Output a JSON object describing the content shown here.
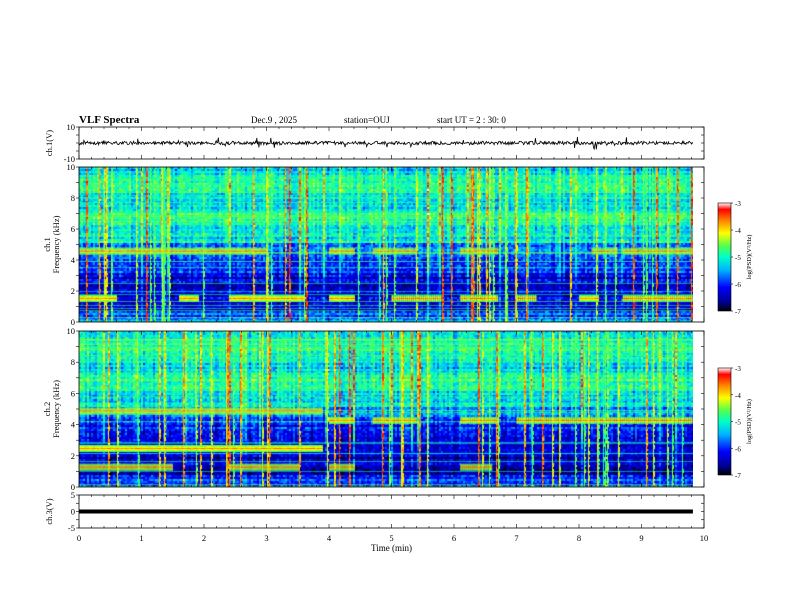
{
  "header": {
    "title": "VLF Spectra",
    "date": "Dec.9 , 2025",
    "station": "station=OUJ",
    "start_ut": "start UT = 2 : 30: 0"
  },
  "chart_data": [
    {
      "type": "line",
      "name": "ch.1 waveform",
      "ylabel": "ch.1(V)",
      "ylim": [
        -10,
        10
      ],
      "yticks": [
        "10",
        "-10"
      ],
      "x_range_min": [
        0,
        9.83
      ],
      "approx_value": 0
    },
    {
      "type": "heatmap",
      "name": "ch.1 spectrogram",
      "ylabel": "ch.1 Frequency (kHz)",
      "ylim": [
        0,
        10
      ],
      "yticks": [
        "0",
        "2",
        "4",
        "6",
        "8",
        "10"
      ],
      "colorbar": {
        "label": "log(PSD)(V²/Hz)",
        "range": [
          -7,
          -3
        ],
        "ticks": [
          "-3",
          "-4",
          "-5",
          "-6",
          "-7"
        ]
      },
      "tone_bands_khz": [
        {
          "freq": 4.6,
          "segments": [
            [
              0.0,
              3.0
            ],
            [
              4.0,
              4.4
            ],
            [
              4.7,
              5.4
            ],
            [
              6.1,
              6.7
            ],
            [
              8.2,
              8.6
            ],
            [
              8.7,
              9.8
            ]
          ]
        },
        {
          "freq": 1.55,
          "segments": [
            [
              0.0,
              0.6
            ],
            [
              1.6,
              1.9
            ],
            [
              2.4,
              3.6
            ],
            [
              4.0,
              4.4
            ],
            [
              5.0,
              5.8
            ],
            [
              6.1,
              6.7
            ],
            [
              7.0,
              7.3
            ],
            [
              8.0,
              8.3
            ],
            [
              8.7,
              9.8
            ]
          ]
        }
      ]
    },
    {
      "type": "heatmap",
      "name": "ch.2 spectrogram",
      "ylabel": "ch.2 Frequency (kHz)",
      "ylim": [
        0,
        10
      ],
      "yticks": [
        "0",
        "2",
        "4",
        "6",
        "8",
        "10"
      ],
      "colorbar": {
        "label": "log(PSD)(V²/Hz)",
        "range": [
          -7,
          -3
        ],
        "ticks": [
          "-3",
          "-4",
          "-5",
          "-6",
          "-7"
        ]
      },
      "tone_bands_khz": [
        {
          "freq": 4.9,
          "segments": [
            [
              0.0,
              3.9
            ]
          ]
        },
        {
          "freq": 2.5,
          "segments": [
            [
              0.0,
              3.9
            ]
          ]
        },
        {
          "freq": 1.3,
          "segments": [
            [
              0.0,
              1.5
            ],
            [
              2.4,
              3.5
            ],
            [
              4.0,
              4.4
            ],
            [
              6.1,
              6.6
            ]
          ]
        },
        {
          "freq": 4.3,
          "segments": [
            [
              4.0,
              4.4
            ],
            [
              4.7,
              5.4
            ],
            [
              6.1,
              6.7
            ],
            [
              7.0,
              9.8
            ]
          ]
        }
      ]
    },
    {
      "type": "line",
      "name": "ch.3 waveform",
      "ylabel": "ch.3(V)",
      "ylim": [
        -5,
        5
      ],
      "yticks": [
        "5",
        "0",
        "-5"
      ],
      "x_range_min": [
        0,
        9.83
      ],
      "approx_value": 0
    }
  ],
  "xaxis": {
    "label": "Time (min)",
    "xlim": [
      0,
      10
    ],
    "ticks": [
      "0",
      "1",
      "2",
      "3",
      "4",
      "5",
      "6",
      "7",
      "8",
      "9",
      "10"
    ],
    "data_end": 9.83
  }
}
